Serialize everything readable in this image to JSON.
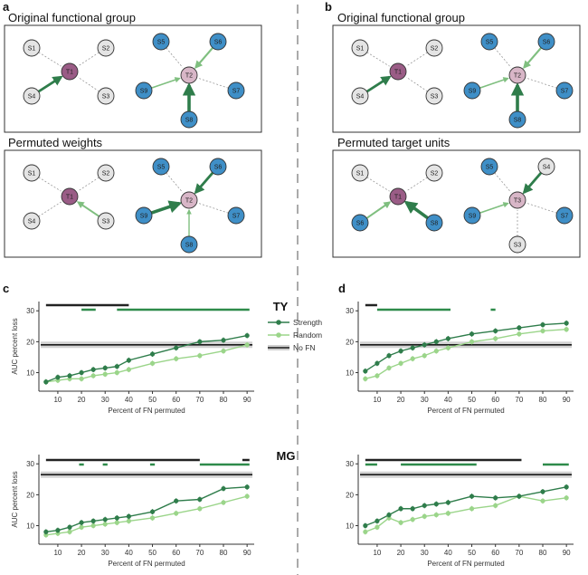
{
  "panel_labels": {
    "a": "a",
    "b": "b",
    "c": "c",
    "d": "d"
  },
  "diagrams": {
    "a_top_title": "Original functional group",
    "a_bottom_title": "Permuted weights",
    "b_top_title": "Original functional group",
    "b_bottom_title": "Permuted target units"
  },
  "nodes": {
    "S1": "S1",
    "S2": "S2",
    "S3": "S3",
    "S4": "S4",
    "S5": "S5",
    "S6": "S6",
    "S7": "S7",
    "S8": "S8",
    "S9": "S9",
    "T1": "T1",
    "T2": "T2",
    "T3": "T3"
  },
  "colors": {
    "gray_node": "#e4e4e4",
    "purple_node": "#9a5c86",
    "pink_node": "#d8b6c7",
    "blue_node": "#3f8fc7",
    "strength": "#2f7d4b",
    "random": "#9bd58a",
    "nofn": "#1a1a1a",
    "sig_black": "#222222",
    "sig_green": "#2e8b4a"
  },
  "row_labels": {
    "ty": "TY",
    "mg": "MG"
  },
  "legend": {
    "strength": "Strength",
    "random": "Random",
    "nofn": "No FN"
  },
  "chart_data": [
    {
      "id": "c-ty",
      "type": "line",
      "xlabel": "Percent of FN permuted",
      "ylabel": "AUC percent loss",
      "xticks": [
        10,
        20,
        30,
        40,
        50,
        60,
        70,
        80,
        90
      ],
      "yticks": [
        10,
        20,
        30
      ],
      "xlim": [
        2,
        93
      ],
      "ylim": [
        4,
        33
      ],
      "x": [
        5,
        10,
        15,
        20,
        25,
        30,
        35,
        40,
        50,
        60,
        70,
        80,
        90
      ],
      "series": [
        {
          "name": "Strength",
          "values": [
            7,
            8.5,
            9,
            10,
            11,
            11.5,
            12,
            14,
            16,
            18,
            20,
            20.5,
            22
          ]
        },
        {
          "name": "Random",
          "values": [
            7,
            7.5,
            8,
            8,
            9,
            9.5,
            10,
            11,
            13,
            14.5,
            15.5,
            17,
            19
          ]
        }
      ],
      "nofn": 19,
      "sig_black": [
        [
          5,
          40
        ]
      ],
      "sig_green": [
        [
          20,
          26
        ],
        [
          35,
          91
        ]
      ]
    },
    {
      "id": "d-ty",
      "type": "line",
      "xlabel": "Percent of FN permuted",
      "ylabel": "",
      "xticks": [
        10,
        20,
        30,
        40,
        50,
        60,
        70,
        80,
        90
      ],
      "yticks": [
        10,
        20,
        30
      ],
      "xlim": [
        2,
        93
      ],
      "ylim": [
        4,
        33
      ],
      "x": [
        5,
        10,
        15,
        20,
        25,
        30,
        35,
        40,
        50,
        60,
        70,
        80,
        90
      ],
      "series": [
        {
          "name": "Strength",
          "values": [
            10.5,
            13,
            15.5,
            17,
            18,
            19,
            20,
            21,
            22.5,
            23.5,
            24.5,
            25.5,
            26
          ]
        },
        {
          "name": "Random",
          "values": [
            8,
            9,
            11.5,
            13,
            14.5,
            15.5,
            17,
            18,
            20,
            21,
            22.5,
            23.5,
            24
          ]
        }
      ],
      "nofn": 19,
      "sig_black": [
        [
          5,
          10
        ]
      ],
      "sig_green": [
        [
          10,
          41
        ],
        [
          58,
          60
        ]
      ]
    },
    {
      "id": "c-mg",
      "type": "line",
      "xlabel": "Percent of FN permuted",
      "ylabel": "AUC percent loss",
      "xticks": [
        10,
        20,
        30,
        40,
        50,
        60,
        70,
        80,
        90
      ],
      "yticks": [
        10,
        20,
        30
      ],
      "xlim": [
        2,
        93
      ],
      "ylim": [
        4,
        33
      ],
      "x": [
        5,
        10,
        15,
        20,
        25,
        30,
        35,
        40,
        50,
        60,
        70,
        80,
        90
      ],
      "series": [
        {
          "name": "Strength",
          "values": [
            8,
            8.5,
            9.5,
            11,
            11.5,
            12,
            12.5,
            13,
            14.5,
            18,
            18.5,
            22,
            22.5
          ]
        },
        {
          "name": "Random",
          "values": [
            7,
            7.5,
            8,
            9.5,
            10,
            10.5,
            11,
            11.5,
            12.5,
            14,
            15.5,
            17.5,
            19.5
          ]
        }
      ],
      "nofn": 26.5,
      "sig_black": [
        [
          5,
          70
        ],
        [
          88,
          91
        ]
      ],
      "sig_green": [
        [
          19,
          21
        ],
        [
          29,
          31
        ],
        [
          49,
          51
        ],
        [
          70,
          91
        ]
      ]
    },
    {
      "id": "d-mg",
      "type": "line",
      "xlabel": "Percent of FN permuted",
      "ylabel": "",
      "xticks": [
        10,
        20,
        30,
        40,
        50,
        60,
        70,
        80,
        90
      ],
      "yticks": [
        10,
        20,
        30
      ],
      "xlim": [
        2,
        93
      ],
      "ylim": [
        4,
        33
      ],
      "x": [
        5,
        10,
        15,
        20,
        25,
        30,
        35,
        40,
        50,
        60,
        70,
        80,
        90
      ],
      "series": [
        {
          "name": "Strength",
          "values": [
            10,
            11.5,
            13.5,
            15.5,
            15.5,
            16.5,
            17,
            17.5,
            19.5,
            19,
            19.5,
            21,
            22.5
          ]
        },
        {
          "name": "Random",
          "values": [
            8,
            9.5,
            12.5,
            11,
            12,
            13,
            13.5,
            14,
            15.5,
            16.5,
            19.5,
            18,
            19
          ]
        }
      ],
      "nofn": 26.5,
      "sig_black": [
        [
          5,
          71
        ]
      ],
      "sig_green": [
        [
          5,
          10
        ],
        [
          20,
          52
        ],
        [
          80,
          91
        ]
      ]
    }
  ]
}
